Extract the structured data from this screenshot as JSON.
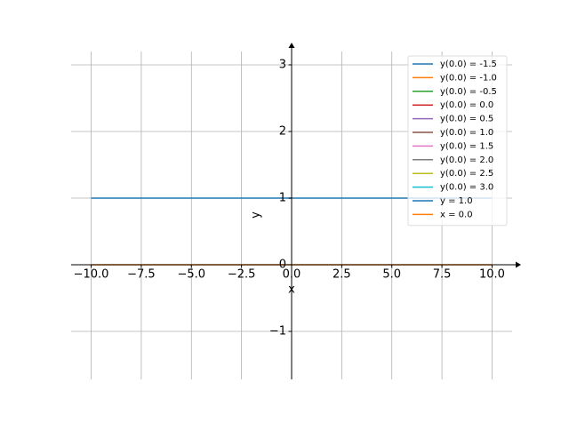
{
  "chart_data": {
    "type": "line",
    "x_label": "x",
    "y_label": "y",
    "x": [
      -10,
      10
    ],
    "series": [
      {
        "name": "y(0.0) = -1.5",
        "color": "#1f77b4",
        "values": [
          null,
          null
        ]
      },
      {
        "name": "y(0.0) = -1.0",
        "color": "#ff7f0e",
        "values": [
          null,
          null
        ]
      },
      {
        "name": "y(0.0) = -0.5",
        "color": "#2ca02c",
        "values": [
          null,
          null
        ]
      },
      {
        "name": "y(0.0) = 0.0",
        "color": "#d62728",
        "values": [
          null,
          null
        ]
      },
      {
        "name": "y(0.0) = 0.5",
        "color": "#9467bd",
        "values": [
          null,
          null
        ]
      },
      {
        "name": "y(0.0) = 1.0",
        "color": "#8c564b",
        "values": [
          null,
          null
        ]
      },
      {
        "name": "y(0.0) = 1.5",
        "color": "#e377c2",
        "values": [
          null,
          null
        ]
      },
      {
        "name": "y(0.0) = 2.0",
        "color": "#7f7f7f",
        "values": [
          null,
          null
        ]
      },
      {
        "name": "y(0.0) = 2.5",
        "color": "#bcbd22",
        "values": [
          null,
          null
        ]
      },
      {
        "name": "y(0.0) = 3.0",
        "color": "#17becf",
        "values": [
          null,
          null
        ]
      },
      {
        "name": "y = 1.0",
        "color": "#1f77b4",
        "values": [
          1,
          1
        ]
      },
      {
        "name": "x = 0.0",
        "color": "#ff7f0e",
        "values": [
          0,
          0
        ]
      }
    ],
    "xlim": [
      -11,
      11
    ],
    "ylim": [
      -1.72,
      3.2
    ],
    "xticks": [
      {
        "value": -10,
        "label": "−10.0"
      },
      {
        "value": -7.5,
        "label": "−7.5"
      },
      {
        "value": -5,
        "label": "−5.0"
      },
      {
        "value": -2.5,
        "label": "−2.5"
      },
      {
        "value": 0,
        "label": "0.0"
      },
      2.5,
      {
        "value": 5,
        "label": "5.0"
      },
      7.5,
      {
        "value": 10,
        "label": "10.0"
      }
    ],
    "yticks": [
      {
        "value": -1,
        "label": "−1"
      },
      0,
      1,
      2,
      3
    ],
    "grid": true,
    "legend": "upper right"
  }
}
